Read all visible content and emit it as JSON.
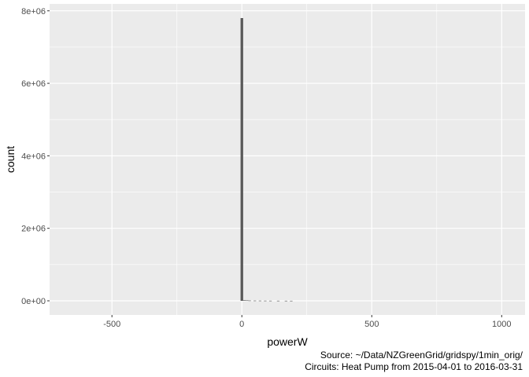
{
  "chart_data": {
    "type": "bar",
    "title": "",
    "xlabel": "powerW",
    "ylabel": "count",
    "xlim": [
      -740,
      1090
    ],
    "ylim": [
      -390000,
      8190000
    ],
    "x_ticks": [
      -500,
      0,
      500,
      1000
    ],
    "x_tick_labels": [
      "-500",
      "0",
      "500",
      "1000"
    ],
    "x_minor_ticks": [
      -250,
      250,
      750
    ],
    "y_ticks": [
      0,
      2000000,
      4000000,
      6000000,
      8000000
    ],
    "y_tick_labels": [
      "0e+00",
      "2e+06",
      "4e+06",
      "6e+06",
      "8e+06"
    ],
    "y_minor_ticks": [
      1000000,
      3000000,
      5000000,
      7000000
    ],
    "bins": [
      {
        "x": 0,
        "count": 7800000
      },
      {
        "x": 10,
        "count": 15000
      },
      {
        "x": 20,
        "count": 12000
      },
      {
        "x": 30,
        "count": 8000
      },
      {
        "x": 50,
        "count": 6000
      },
      {
        "x": 70,
        "count": 5000
      },
      {
        "x": 90,
        "count": 4000
      },
      {
        "x": 110,
        "count": 3000
      },
      {
        "x": 140,
        "count": 2500
      },
      {
        "x": 170,
        "count": 2000
      },
      {
        "x": 190,
        "count": 1500
      }
    ],
    "bin_width": 10,
    "bar_color": "#595959",
    "panel_background": "#ebebeb",
    "grid": true,
    "grid_color": "#ffffff",
    "caption_lines": [
      "Source: ~/Data/NZGreenGrid/gridspy/1min_orig/",
      "Circuits: Heat Pump from 2015-04-01 to 2016-03-31"
    ]
  }
}
